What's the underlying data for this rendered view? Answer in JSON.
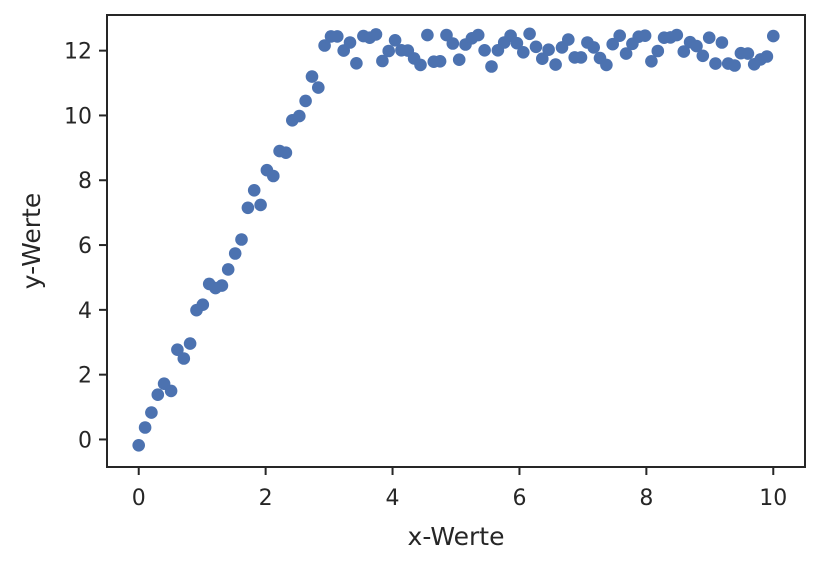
{
  "chart_data": {
    "type": "scatter",
    "title": "",
    "xlabel": "x-Werte",
    "ylabel": "y-Werte",
    "xlim": [
      -0.5,
      10.5
    ],
    "ylim": [
      -0.85,
      13.1
    ],
    "grid": false,
    "xticks": [
      0,
      2,
      4,
      6,
      8,
      10
    ],
    "yticks": [
      0,
      2,
      4,
      6,
      8,
      10,
      12
    ],
    "xtick_labels": [
      "0",
      "2",
      "4",
      "6",
      "8",
      "10"
    ],
    "ytick_labels": [
      "0",
      "2",
      "4",
      "6",
      "8",
      "10",
      "12"
    ],
    "marker_color": "#4c72b0",
    "series": [
      {
        "points": [
          [
            0.0,
            -0.18
          ],
          [
            0.1,
            0.37
          ],
          [
            0.2,
            0.83
          ],
          [
            0.3,
            1.38
          ],
          [
            0.4,
            1.72
          ],
          [
            0.51,
            1.5
          ],
          [
            0.61,
            2.77
          ],
          [
            0.71,
            2.5
          ],
          [
            0.81,
            2.96
          ],
          [
            0.91,
            3.99
          ],
          [
            1.01,
            4.16
          ],
          [
            1.11,
            4.8
          ],
          [
            1.21,
            4.67
          ],
          [
            1.31,
            4.75
          ],
          [
            1.41,
            5.25
          ],
          [
            1.52,
            5.74
          ],
          [
            1.62,
            6.17
          ],
          [
            1.72,
            7.15
          ],
          [
            1.82,
            7.69
          ],
          [
            1.92,
            7.24
          ],
          [
            2.02,
            8.31
          ],
          [
            2.12,
            8.13
          ],
          [
            2.22,
            8.9
          ],
          [
            2.32,
            8.85
          ],
          [
            2.42,
            9.85
          ],
          [
            2.53,
            9.98
          ],
          [
            2.63,
            10.45
          ],
          [
            2.73,
            11.2
          ],
          [
            2.83,
            10.86
          ],
          [
            2.93,
            12.16
          ],
          [
            3.03,
            12.44
          ],
          [
            3.13,
            12.44
          ],
          [
            3.23,
            12.0
          ],
          [
            3.33,
            12.25
          ],
          [
            3.43,
            11.61
          ],
          [
            3.54,
            12.45
          ],
          [
            3.64,
            12.4
          ],
          [
            3.74,
            12.5
          ],
          [
            3.84,
            11.68
          ],
          [
            3.94,
            11.99
          ],
          [
            4.04,
            12.32
          ],
          [
            4.14,
            12.01
          ],
          [
            4.24,
            12.0
          ],
          [
            4.34,
            11.76
          ],
          [
            4.44,
            11.56
          ],
          [
            4.55,
            12.48
          ],
          [
            4.65,
            11.66
          ],
          [
            4.75,
            11.67
          ],
          [
            4.85,
            12.48
          ],
          [
            4.95,
            12.22
          ],
          [
            5.05,
            11.72
          ],
          [
            5.15,
            12.19
          ],
          [
            5.25,
            12.38
          ],
          [
            5.35,
            12.48
          ],
          [
            5.45,
            12.01
          ],
          [
            5.56,
            11.51
          ],
          [
            5.66,
            12.01
          ],
          [
            5.76,
            12.25
          ],
          [
            5.86,
            12.46
          ],
          [
            5.96,
            12.23
          ],
          [
            6.06,
            11.95
          ],
          [
            6.16,
            12.52
          ],
          [
            6.26,
            12.12
          ],
          [
            6.36,
            11.75
          ],
          [
            6.46,
            12.03
          ],
          [
            6.57,
            11.57
          ],
          [
            6.67,
            12.1
          ],
          [
            6.77,
            12.34
          ],
          [
            6.87,
            11.79
          ],
          [
            6.97,
            11.79
          ],
          [
            7.07,
            12.25
          ],
          [
            7.17,
            12.1
          ],
          [
            7.27,
            11.77
          ],
          [
            7.37,
            11.56
          ],
          [
            7.47,
            12.2
          ],
          [
            7.58,
            12.46
          ],
          [
            7.68,
            11.91
          ],
          [
            7.78,
            12.21
          ],
          [
            7.88,
            12.43
          ],
          [
            7.98,
            12.46
          ],
          [
            8.08,
            11.67
          ],
          [
            8.18,
            11.99
          ],
          [
            8.28,
            12.4
          ],
          [
            8.38,
            12.41
          ],
          [
            8.48,
            12.48
          ],
          [
            8.59,
            11.97
          ],
          [
            8.69,
            12.26
          ],
          [
            8.79,
            12.14
          ],
          [
            8.89,
            11.84
          ],
          [
            8.99,
            12.4
          ],
          [
            9.09,
            11.6
          ],
          [
            9.19,
            12.25
          ],
          [
            9.29,
            11.6
          ],
          [
            9.39,
            11.54
          ],
          [
            9.49,
            11.92
          ],
          [
            9.6,
            11.91
          ],
          [
            9.7,
            11.58
          ],
          [
            9.8,
            11.73
          ],
          [
            9.9,
            11.82
          ],
          [
            10.0,
            12.45
          ]
        ]
      }
    ]
  }
}
